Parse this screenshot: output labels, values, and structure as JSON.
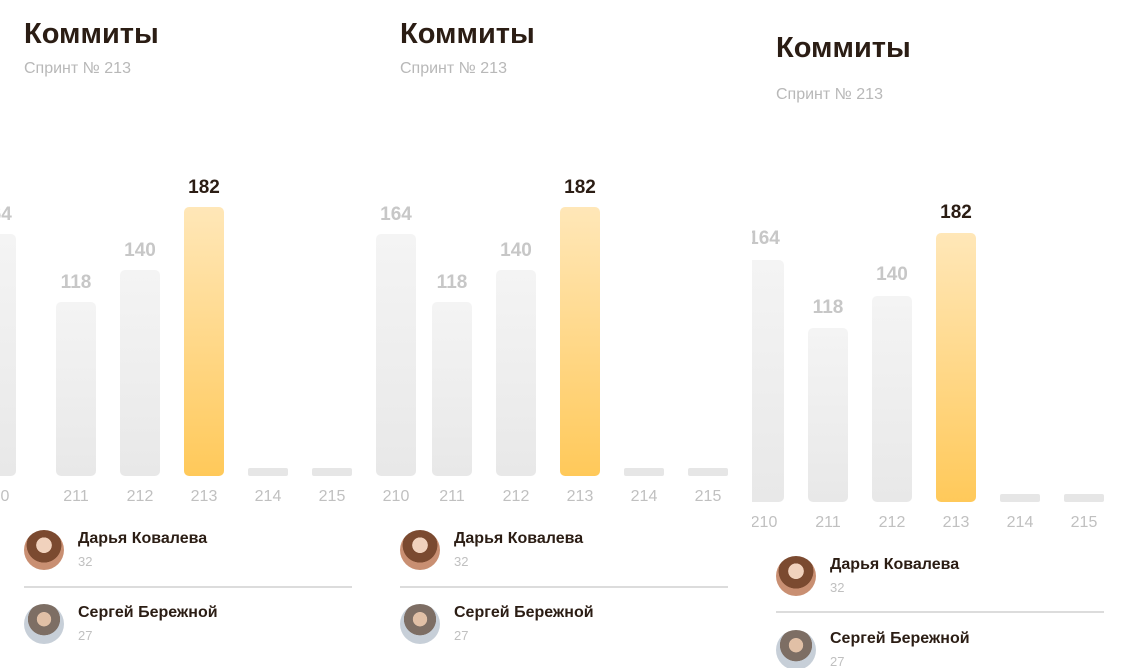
{
  "widget": {
    "title": "Коммиты",
    "subtitle": "Спринт № 213",
    "bars": [
      {
        "sprint": "210",
        "value": 164,
        "value_label": "164",
        "active": false
      },
      {
        "sprint": "211",
        "value": 118,
        "value_label": "118",
        "active": false
      },
      {
        "sprint": "212",
        "value": 140,
        "value_label": "140",
        "active": false
      },
      {
        "sprint": "213",
        "value": 182,
        "value_label": "182",
        "active": true
      },
      {
        "sprint": "214",
        "value": 0,
        "value_label": "",
        "active": false
      },
      {
        "sprint": "215",
        "value": 0,
        "value_label": "",
        "active": false
      }
    ],
    "users": [
      {
        "name": "Дарья Ковалева",
        "count": "32",
        "avatar": "avatar-daria"
      },
      {
        "name": "Сергей Бережной",
        "count": "27",
        "avatar": "avatar-sergey"
      }
    ]
  },
  "colors": {
    "accent_gradient_top": "#ffe7b8",
    "accent_gradient_bottom": "#ffc95a",
    "title_text": "#2b1d14",
    "muted_text": "#c0c0c0"
  }
}
